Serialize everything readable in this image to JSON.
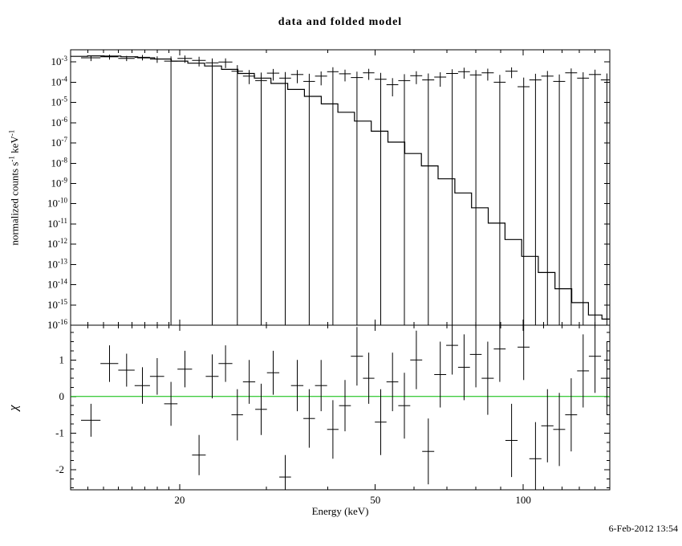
{
  "timestamp": "6-Feb-2012 13:54",
  "labels": {
    "ylabel_text1": "normalized counts s",
    "ylabel_sup1": "-1",
    "ylabel_text2": " keV",
    "ylabel_sup2": "-1"
  },
  "colors": {
    "background": "#ffffff",
    "foreground": "#000000",
    "zero_line": "#00bb00"
  },
  "chart_data": [
    {
      "name": "spectrum",
      "type": "scatter",
      "title": "data and folded model",
      "xlabel": "Energy (keV)",
      "ylabel": "normalized counts s^-1 keV^-1",
      "xscale": "log",
      "yscale": "log",
      "xlim": [
        12,
        150
      ],
      "ylim": [
        1e-16,
        0.004
      ],
      "grid": false,
      "xticks": [
        20,
        50,
        100
      ],
      "xtick_labels": [
        "20",
        "50",
        "100"
      ],
      "xticks_minor": [
        13,
        14,
        15,
        16,
        17,
        18,
        19,
        30,
        40,
        60,
        70,
        80,
        90,
        110,
        120,
        130,
        140,
        150
      ],
      "ytick_exponents": [
        -3,
        -4,
        -5,
        -6,
        -7,
        -8,
        -9,
        -10,
        -11,
        -12,
        -13,
        -14,
        -15,
        -16
      ],
      "points_format": [
        "energy_keV",
        "energy_halfwidth_keV",
        "value",
        "err_low_bound",
        "err_high_bound"
      ],
      "points": [
        [
          13.2,
          0.6,
          0.0016,
          0.0011,
          0.0021
        ],
        [
          14.4,
          0.6,
          0.0018,
          0.0013,
          0.0023
        ],
        [
          15.6,
          0.6,
          0.0015,
          0.0011,
          0.002
        ],
        [
          16.8,
          0.6,
          0.0017,
          0.0012,
          0.0022
        ],
        [
          18.0,
          0.6,
          0.0014,
          0.0009,
          0.0019
        ],
        [
          19.2,
          0.6,
          0.0011,
          1e-16,
          0.0019
        ],
        [
          20.5,
          0.7,
          0.0015,
          0.0009,
          0.0021
        ],
        [
          21.9,
          0.7,
          0.0012,
          0.0006,
          0.0018
        ],
        [
          23.3,
          0.7,
          0.0009,
          1e-16,
          0.0015
        ],
        [
          24.8,
          0.8,
          0.001,
          0.0005,
          0.0015
        ],
        [
          26.2,
          0.7,
          0.00035,
          1e-16,
          0.0007
        ],
        [
          27.7,
          0.8,
          0.0002,
          8e-05,
          0.0004
        ],
        [
          29.3,
          0.8,
          0.00012,
          1e-16,
          0.0003
        ],
        [
          31.0,
          0.9,
          0.00028,
          0.00012,
          0.00045
        ],
        [
          32.8,
          0.9,
          0.00016,
          1e-16,
          0.00032
        ],
        [
          34.7,
          1.0,
          0.00024,
          9e-05,
          0.0004
        ],
        [
          36.7,
          1.0,
          0.00011,
          1e-16,
          0.00026
        ],
        [
          38.8,
          1.1,
          0.0002,
          7e-05,
          0.00034
        ],
        [
          41.0,
          1.1,
          0.00033,
          1e-16,
          0.00055
        ],
        [
          43.4,
          1.2,
          0.00026,
          0.00011,
          0.00042
        ],
        [
          45.9,
          1.3,
          0.00017,
          1e-16,
          0.00033
        ],
        [
          48.5,
          1.3,
          0.00029,
          0.00013,
          0.00046
        ],
        [
          51.3,
          1.4,
          0.00014,
          1e-16,
          0.00029
        ],
        [
          54.2,
          1.5,
          7.5e-05,
          2e-05,
          0.00016
        ],
        [
          57.3,
          1.6,
          0.00012,
          1e-16,
          0.00025
        ],
        [
          60.6,
          1.7,
          0.00021,
          8e-05,
          0.00035
        ],
        [
          64.1,
          1.8,
          0.00013,
          1e-16,
          0.00027
        ],
        [
          67.8,
          1.9,
          0.00018,
          6e-05,
          0.00031
        ],
        [
          71.7,
          2.0,
          0.00027,
          1e-16,
          0.00044
        ],
        [
          75.8,
          2.1,
          0.00033,
          0.00015,
          0.00052
        ],
        [
          80.1,
          2.2,
          0.00023,
          1e-16,
          0.0004
        ],
        [
          84.7,
          2.4,
          0.00029,
          0.00012,
          0.00047
        ],
        [
          89.6,
          2.5,
          0.0001,
          1e-16,
          0.00023
        ],
        [
          94.7,
          2.7,
          0.00035,
          0.00016,
          0.00054
        ],
        [
          100.2,
          2.8,
          6e-05,
          1e-16,
          0.00017
        ],
        [
          105.9,
          3.0,
          0.00013,
          1e-16,
          0.00026
        ],
        [
          112.0,
          3.2,
          0.0002,
          1e-16,
          0.00036
        ],
        [
          118.4,
          3.3,
          0.00011,
          1e-16,
          0.00024
        ],
        [
          125.2,
          3.5,
          0.00029,
          1e-16,
          0.00048
        ],
        [
          132.4,
          3.7,
          0.00016,
          1e-16,
          0.00031
        ],
        [
          140.0,
          4.0,
          0.00024,
          1e-16,
          0.00042
        ],
        [
          148.0,
          4.2,
          0.00013,
          1e-16,
          0.00027
        ]
      ],
      "model": {
        "e": [
          12.5,
          13.5,
          14.6,
          15.8,
          17.1,
          18.5,
          20.0,
          21.6,
          23.4,
          25.3,
          27.3,
          29.5,
          31.9,
          34.5,
          37.3,
          40.4,
          43.6,
          47.2,
          51.0,
          55.2,
          59.7,
          64.5,
          69.8,
          75.5,
          81.6,
          88.3,
          95.5,
          103.2,
          111.6,
          120.7,
          130.5,
          141.2,
          148.0
        ],
        "v": [
          0.0019,
          0.002,
          0.00195,
          0.0018,
          0.0016,
          0.0014,
          0.0011,
          0.00087,
          0.00063,
          0.00043,
          0.00027,
          0.00016,
          8.7e-05,
          4.4e-05,
          2e-05,
          8.5e-06,
          3.3e-06,
          1.2e-06,
          3.8e-07,
          1.1e-07,
          3e-08,
          7.4e-09,
          1.7e-09,
          3.4e-10,
          6.3e-11,
          1.1e-11,
          1.7e-12,
          2.5e-13,
          4e-14,
          6.3e-15,
          1.3e-15,
          3.2e-16,
          2e-16
        ]
      }
    },
    {
      "name": "residuals",
      "type": "scatter",
      "ylabel": "χ",
      "xscale": "log",
      "yscale": "linear",
      "xlim": [
        12,
        150
      ],
      "ylim": [
        -2.55,
        1.95
      ],
      "yticks": [
        1,
        0,
        -1,
        -2
      ],
      "zero_line": 0,
      "points_format": [
        "energy_keV",
        "energy_halfwidth_keV",
        "chi",
        "chi_err"
      ],
      "points": [
        [
          13.2,
          0.6,
          -0.65,
          0.45
        ],
        [
          14.4,
          0.6,
          0.9,
          0.5
        ],
        [
          15.6,
          0.6,
          0.72,
          0.45
        ],
        [
          16.8,
          0.6,
          0.3,
          0.5
        ],
        [
          18.0,
          0.6,
          0.55,
          0.5
        ],
        [
          19.2,
          0.6,
          -0.2,
          0.6
        ],
        [
          20.5,
          0.7,
          0.75,
          0.5
        ],
        [
          21.9,
          0.7,
          -1.6,
          0.55
        ],
        [
          23.3,
          0.7,
          0.55,
          0.6
        ],
        [
          24.8,
          0.8,
          0.9,
          0.5
        ],
        [
          26.2,
          0.7,
          -0.5,
          0.7
        ],
        [
          27.7,
          0.8,
          0.4,
          0.6
        ],
        [
          29.3,
          0.8,
          -0.35,
          0.7
        ],
        [
          31.0,
          0.9,
          0.65,
          0.6
        ],
        [
          32.8,
          0.9,
          -2.2,
          0.6
        ],
        [
          34.7,
          1.0,
          0.3,
          0.7
        ],
        [
          36.7,
          1.0,
          -0.6,
          0.8
        ],
        [
          38.8,
          1.1,
          0.3,
          0.7
        ],
        [
          41.0,
          1.1,
          -0.9,
          0.8
        ],
        [
          43.4,
          1.2,
          -0.25,
          0.7
        ],
        [
          45.9,
          1.3,
          1.1,
          0.8
        ],
        [
          48.5,
          1.3,
          0.5,
          0.7
        ],
        [
          51.3,
          1.4,
          -0.7,
          0.9
        ],
        [
          54.2,
          1.5,
          0.4,
          0.8
        ],
        [
          57.3,
          1.6,
          -0.25,
          0.9
        ],
        [
          60.6,
          1.7,
          1.0,
          0.8
        ],
        [
          64.1,
          1.8,
          -1.5,
          0.9
        ],
        [
          67.8,
          1.9,
          0.6,
          0.9
        ],
        [
          71.7,
          2.0,
          1.4,
          0.8
        ],
        [
          75.8,
          2.1,
          0.8,
          0.9
        ],
        [
          80.1,
          2.2,
          1.15,
          0.9
        ],
        [
          84.7,
          2.4,
          0.5,
          1.0
        ],
        [
          89.6,
          2.5,
          1.3,
          0.9
        ],
        [
          94.7,
          2.7,
          -1.2,
          1.0
        ],
        [
          100.2,
          2.8,
          1.35,
          0.9
        ],
        [
          105.9,
          3.0,
          -1.7,
          1.0
        ],
        [
          112.0,
          3.2,
          -0.8,
          1.0
        ],
        [
          118.4,
          3.3,
          -0.9,
          1.0
        ],
        [
          125.2,
          3.5,
          -0.5,
          1.0
        ],
        [
          132.4,
          3.7,
          0.7,
          1.0
        ],
        [
          140.0,
          4.0,
          1.1,
          1.0
        ],
        [
          148.0,
          4.2,
          0.5,
          1.0
        ]
      ]
    }
  ]
}
